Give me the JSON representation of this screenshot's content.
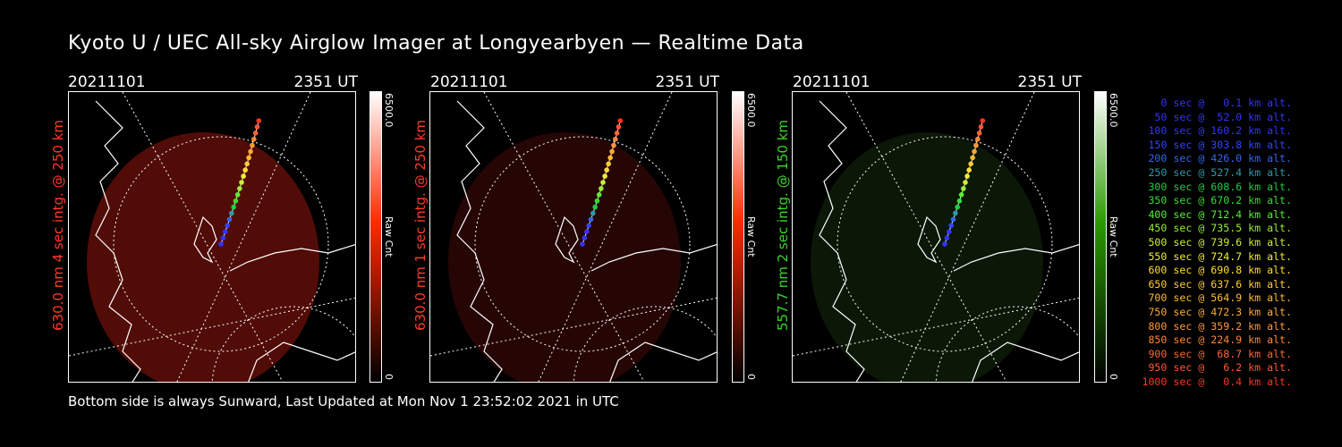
{
  "title": "Kyoto U / UEC All-sky Airglow Imager at Longyearbyen — Realtime Data",
  "footer": "Bottom side is always Sunward, Last Updated at Mon Nov  1 23:52:02 2021 in UTC",
  "panels": [
    {
      "date": "20211101",
      "time": "2351 UT",
      "side_label": "630.0 nm 4 sec intg. @ 250 km",
      "label_color": "#ff3a2a",
      "cbar_max": "6500.0",
      "cbar_min": "0",
      "cbar_unit": "Raw Cnt",
      "cbar_color": "#ff2a00",
      "glow_color": "#5a0d08"
    },
    {
      "date": "20211101",
      "time": "2351 UT",
      "side_label": "630.0 nm 1 sec intg. @ 250 km",
      "label_color": "#ff3a2a",
      "cbar_max": "6500.0",
      "cbar_min": "0",
      "cbar_unit": "Raw Cnt",
      "cbar_color": "#ff2a00",
      "glow_color": "#2a0505"
    },
    {
      "date": "20211101",
      "time": "2351 UT",
      "side_label": "557.7 nm 2 sec intg. @ 150 km",
      "label_color": "#3ad62a",
      "cbar_max": "6500.0",
      "cbar_min": "0",
      "cbar_unit": "Raw Cnt",
      "cbar_color": "#2a9a00",
      "glow_color": "#0c1a08"
    }
  ],
  "legend": [
    {
      "text": "0 sec @   0.1 km alt.",
      "color": "#3333ff"
    },
    {
      "text": "50 sec @  52.0 km alt.",
      "color": "#3333ff"
    },
    {
      "text": "100 sec @ 160.2 km alt.",
      "color": "#3333ff"
    },
    {
      "text": "150 sec @ 303.8 km alt.",
      "color": "#3344ff"
    },
    {
      "text": "200 sec @ 426.0 km alt.",
      "color": "#3366ee"
    },
    {
      "text": "250 sec @ 527.4 km alt.",
      "color": "#2a9aaa"
    },
    {
      "text": "300 sec @ 608.6 km alt.",
      "color": "#22cc44"
    },
    {
      "text": "350 sec @ 670.2 km alt.",
      "color": "#33dd33"
    },
    {
      "text": "400 sec @ 712.4 km alt.",
      "color": "#55ee33"
    },
    {
      "text": "450 sec @ 735.5 km alt.",
      "color": "#99ee33"
    },
    {
      "text": "500 sec @ 739.6 km alt.",
      "color": "#ccee33"
    },
    {
      "text": "550 sec @ 724.7 km alt.",
      "color": "#eeee33"
    },
    {
      "text": "600 sec @ 690.8 km alt.",
      "color": "#ffdd33"
    },
    {
      "text": "650 sec @ 637.6 km alt.",
      "color": "#ffcc33"
    },
    {
      "text": "700 sec @ 564.9 km alt.",
      "color": "#ffbb33"
    },
    {
      "text": "750 sec @ 472.3 km alt.",
      "color": "#ffaa33"
    },
    {
      "text": "800 sec @ 359.2 km alt.",
      "color": "#ff9933"
    },
    {
      "text": "850 sec @ 224.9 km alt.",
      "color": "#ff8833"
    },
    {
      "text": "900 sec @  68.7 km alt.",
      "color": "#ff6633"
    },
    {
      "text": "950 sec @   6.2 km alt.",
      "color": "#ff5533"
    },
    {
      "text": "1000 sec @   0.4 km alt.",
      "color": "#ff3322"
    }
  ]
}
